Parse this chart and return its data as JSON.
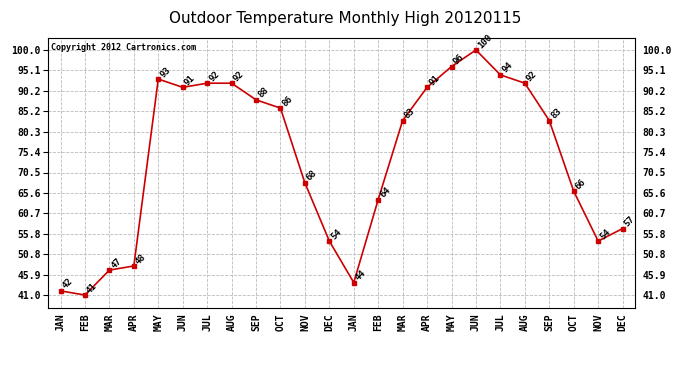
{
  "title": "Outdoor Temperature Monthly High 20120115",
  "copyright_text": "Copyright 2012 Cartronics.com",
  "months": [
    "JAN",
    "FEB",
    "MAR",
    "APR",
    "MAY",
    "JUN",
    "JUL",
    "AUG",
    "SEP",
    "OCT",
    "NOV",
    "DEC",
    "JAN",
    "FEB",
    "MAR",
    "APR",
    "MAY",
    "JUN",
    "JUL",
    "AUG",
    "SEP",
    "OCT",
    "NOV",
    "DEC"
  ],
  "values": [
    42,
    41,
    47,
    48,
    93,
    91,
    92,
    92,
    88,
    86,
    68,
    54,
    44,
    64,
    83,
    91,
    96,
    100,
    94,
    92,
    83,
    66,
    54,
    57
  ],
  "line_color": "#cc0000",
  "marker": "s",
  "marker_color": "#cc0000",
  "marker_size": 3,
  "grid_color": "#bbbbbb",
  "background_color": "#ffffff",
  "plot_bg_color": "#ffffff",
  "yticks": [
    41.0,
    45.9,
    50.8,
    55.8,
    60.7,
    65.6,
    70.5,
    75.4,
    80.3,
    85.2,
    90.2,
    95.1,
    100.0
  ],
  "ylim_min": 38,
  "ylim_max": 103,
  "title_fontsize": 11,
  "tick_fontsize": 7,
  "label_fontsize": 6.5,
  "copyright_fontsize": 6
}
